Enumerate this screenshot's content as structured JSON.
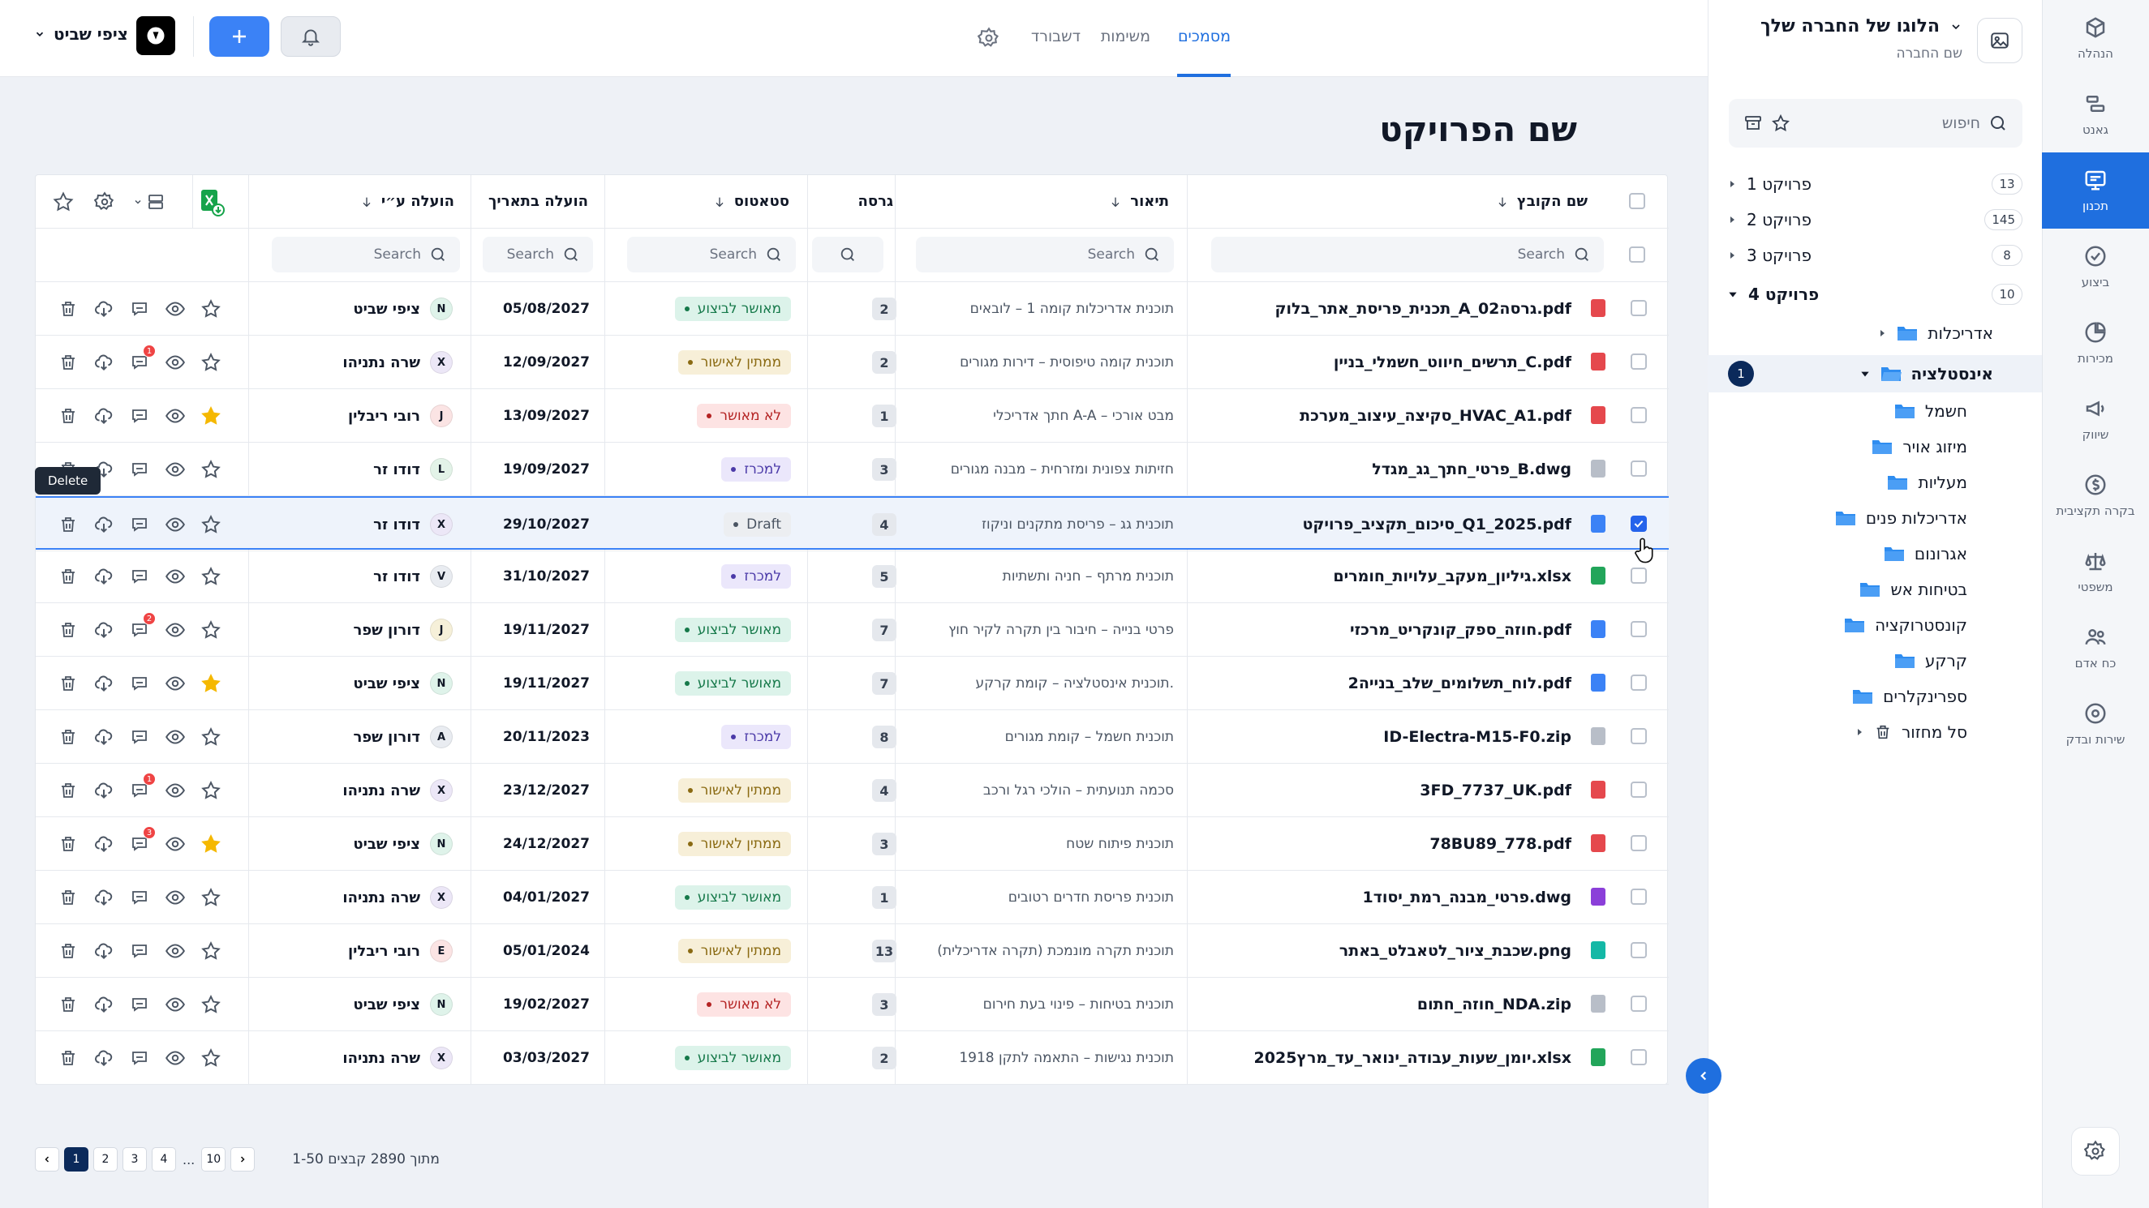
{
  "rail": {
    "items": [
      {
        "label": "הנהלה",
        "icon": "cube-icon"
      },
      {
        "label": "גאנט",
        "icon": "gantt-icon"
      },
      {
        "label": "תכנון",
        "icon": "blueprint-icon"
      },
      {
        "label": "ביצוע",
        "icon": "check-circle-icon"
      },
      {
        "label": "מכירות",
        "icon": "pie-chart-icon"
      },
      {
        "label": "שיווק",
        "icon": "megaphone-icon"
      },
      {
        "label": "בקרה תקציבית",
        "icon": "dollar-circle-icon"
      },
      {
        "label": "משפטי",
        "icon": "scales-icon"
      },
      {
        "label": "כח אדם",
        "icon": "people-icon"
      },
      {
        "label": "שירות ובדק",
        "icon": "service-icon"
      }
    ],
    "active_index": 2
  },
  "sidebar": {
    "company_title": "הלוגו של החברה שלך",
    "company_sub": "שם החברה",
    "search_placeholder": "חיפוש",
    "projects": [
      {
        "label": "פרויקט 1",
        "count": "13"
      },
      {
        "label": "פרויקט 2",
        "count": "145"
      },
      {
        "label": "פרויקט 3",
        "count": "8"
      },
      {
        "label": "פרויקט 4",
        "count": "10"
      }
    ],
    "folders": [
      "אדריכלות",
      "אינסטלציה",
      "חשמל",
      "מיזוג אויר",
      "מעליות",
      "אדריכלות פנים",
      "אגרונום",
      "בטיחות אש",
      "קונסטרוקציה",
      "קרקע",
      "ספרינקלרים",
      "סל מחזור"
    ],
    "selected_folder_badge": "1"
  },
  "topbar": {
    "tabs": [
      "מסמכים",
      "משימות",
      "דשבורד"
    ],
    "user_name": "ציפי שביט"
  },
  "page_title": "שם הפרויקט",
  "table": {
    "headers": {
      "file_name": "שם הקובץ",
      "description": "תיאור",
      "version": "גרסה",
      "status": "סטאטוס",
      "uploaded_date": "הועלה בתאריך",
      "uploaded_by": "הועלה ע״י"
    },
    "search_placeholder": "Search",
    "rows": [
      {
        "file": "תכנית_פריסת_אתר_בלוק_A_גרסה02.pdf",
        "type": "pdf",
        "desc": "תוכנית אדריכלות קומה 1 – לובאים",
        "ver": "2",
        "status": "מאושר לביצוע",
        "st": "approved",
        "date": "05/08/2027",
        "user": "ציפי שביט",
        "av": "N",
        "avc": "#dff3ea",
        "badge": "",
        "star": false
      },
      {
        "file": "תרשים_חיווט_חשמלי_בניין_C.pdf",
        "type": "pdf",
        "desc": "תוכנית קומה טיפוסית – דירות מגורים",
        "ver": "2",
        "status": "ממתין לאישור",
        "st": "pending",
        "date": "12/09/2027",
        "user": "שרה נתניהו",
        "av": "X",
        "avc": "#ece7f7",
        "badge": "1",
        "star": false
      },
      {
        "file": "סקיצה_עיצוב_מערכת_HVAC_A1.pdf",
        "type": "pdf",
        "desc": "חתך אדריכלי A-A – מבט אורכי",
        "ver": "1",
        "status": "לא מאושר",
        "st": "rejected",
        "date": "13/09/2027",
        "user": "רובי ריבלין",
        "av": "J",
        "avc": "#fbe4e4",
        "badge": "",
        "star": true
      },
      {
        "file": "פרטי_חתך_גג_מגדל_B.dwg",
        "type": "dwg",
        "desc": "חזיתות צפונית ומזרחית – מבנה מגורים",
        "ver": "3",
        "status": "למכרז",
        "st": "tender",
        "date": "19/09/2027",
        "user": "דודו זר",
        "av": "L",
        "avc": "#e3f3e8",
        "badge": "",
        "star": false
      },
      {
        "file": "סיכום_תקציב_פרויקט_Q1_2025.pdf",
        "type": "doc",
        "desc": "תוכנית גג – פריסת מתקנים וניקוז",
        "ver": "4",
        "status": "Draft",
        "st": "draft",
        "date": "29/10/2027",
        "user": "דודו זר",
        "av": "X",
        "avc": "#ece7f7",
        "badge": "",
        "star": false
      },
      {
        "file": "גיליון_מעקב_עלויות_חומרים.xlsx",
        "type": "xls",
        "desc": "תוכנית מרתף – חניה ותשתיות",
        "ver": "5",
        "status": "למכרז",
        "st": "tender",
        "date": "31/10/2027",
        "user": "דודו זר",
        "av": "V",
        "avc": "#e9ecf1",
        "badge": "",
        "star": false
      },
      {
        "file": "חוזה_ספק_קונקריט_מרכזי.pdf",
        "type": "doc",
        "desc": "פרטי בנייה – חיבור בין תקרה לקיר חוץ",
        "ver": "7",
        "status": "מאושר לביצוע",
        "st": "approved",
        "date": "19/11/2027",
        "user": "דורון שפר",
        "av": "J",
        "avc": "#f6f0d9",
        "badge": "2",
        "star": false
      },
      {
        "file": "לוח_תשלומים_שלב_בנייה2.pdf",
        "type": "doc",
        "desc": "תוכנית אינסטלציה – קומת קרקע.",
        "ver": "7",
        "status": "מאושר לביצוע",
        "st": "approved",
        "date": "19/11/2027",
        "user": "ציפי שביט",
        "av": "N",
        "avc": "#dff3ea",
        "badge": "",
        "star": true
      },
      {
        "file": "ID-Electra-M15-F0.zip",
        "type": "zip",
        "desc": "תוכנית חשמל – קומת מגורים",
        "ver": "8",
        "status": "למכרז",
        "st": "tender",
        "date": "20/11/2023",
        "user": "דורון שפר",
        "av": "A",
        "avc": "#e9ecf1",
        "badge": "",
        "star": false
      },
      {
        "file": "3FD_7737_UK.pdf",
        "type": "pdf",
        "desc": "סכמה תנועתית – הולכי רגל ורכב",
        "ver": "4",
        "status": "ממתין לאישור",
        "st": "pending",
        "date": "23/12/2027",
        "user": "שרה נתניהו",
        "av": "X",
        "avc": "#ece7f7",
        "badge": "1",
        "star": false
      },
      {
        "file": "78BU89_778.pdf",
        "type": "pdf",
        "desc": "תוכנית פיתוח שטח",
        "ver": "3",
        "status": "ממתין לאישור",
        "st": "pending",
        "date": "24/12/2027",
        "user": "ציפי שביט",
        "av": "N",
        "avc": "#dff3ea",
        "badge": "3",
        "star": true
      },
      {
        "file": "פרטי_מבנה_רמת_יסוד1.dwg",
        "type": "dwgp",
        "desc": "תוכנית פריסת חדרים רטובים",
        "ver": "1",
        "status": "מאושר לביצוע",
        "st": "approved",
        "date": "04/01/2027",
        "user": "שרה נתניהו",
        "av": "X",
        "avc": "#ece7f7",
        "badge": "",
        "star": false
      },
      {
        "file": "שכבת_ציור_לטאבלט_באתר.png",
        "type": "png",
        "desc": "תוכנית תקרה מונמכת (תקרה אדריכלית)",
        "ver": "13",
        "status": "ממתין לאישור",
        "st": "pending",
        "date": "05/01/2024",
        "user": "רובי ריבלין",
        "av": "E",
        "avc": "#fbe4e4",
        "badge": "",
        "star": false
      },
      {
        "file": "חוזה_חתום_NDA.zip",
        "type": "zip",
        "desc": "תוכנית בטיחות – פינוי בעת חירום",
        "ver": "3",
        "status": "לא מאושר",
        "st": "rejected",
        "date": "19/02/2027",
        "user": "ציפי שביט",
        "av": "N",
        "avc": "#dff3ea",
        "badge": "",
        "star": false
      },
      {
        "file": "יומן_שעות_עבודה_ינואר_עד_מרץ2025.xlsx",
        "type": "xls",
        "desc": "תוכנית נגישות – התאמה לתקן 1918",
        "ver": "2",
        "status": "מאושר לביצוע",
        "st": "approved",
        "date": "03/03/2027",
        "user": "שרה נתניהו",
        "av": "X",
        "avc": "#ece7f7",
        "badge": "",
        "star": false
      }
    ],
    "selected_row": 4
  },
  "tooltip": "Delete",
  "pagination": {
    "pages": [
      "1",
      "2",
      "3",
      "4"
    ],
    "ellipsis": "...",
    "last": "10",
    "info": "1-50 מתוך 2890 קבצים"
  },
  "colors": {
    "accent": "#1f6fdf",
    "approved_bg": "#dcf3ea",
    "approved_fg": "#16794a",
    "pending_bg": "#f7efd8",
    "pending_fg": "#8a6a12",
    "rejected_bg": "#fde3e3",
    "rejected_fg": "#b42323",
    "tender_bg": "#ebe7fb",
    "tender_fg": "#4b3aa8",
    "draft_bg": "#eceef1",
    "draft_fg": "#4b5563"
  }
}
